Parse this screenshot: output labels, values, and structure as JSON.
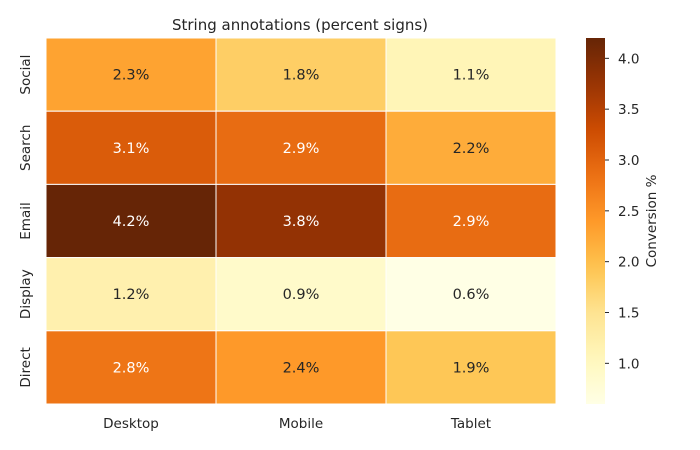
{
  "chart_data": {
    "type": "heatmap",
    "title": "String annotations (percent signs)",
    "columns": [
      "Desktop",
      "Mobile",
      "Tablet"
    ],
    "rows": [
      "Social",
      "Search",
      "Email",
      "Display",
      "Direct"
    ],
    "values": [
      [
        2.3,
        1.8,
        1.1
      ],
      [
        3.1,
        2.9,
        2.2
      ],
      [
        4.2,
        3.8,
        2.9
      ],
      [
        1.2,
        0.9,
        0.6
      ],
      [
        2.8,
        2.4,
        1.9
      ]
    ],
    "annotations": [
      [
        "2.3%",
        "1.8%",
        "1.1%"
      ],
      [
        "3.1%",
        "2.9%",
        "2.2%"
      ],
      [
        "4.2%",
        "3.8%",
        "2.9%"
      ],
      [
        "1.2%",
        "0.9%",
        "0.6%"
      ],
      [
        "2.8%",
        "2.4%",
        "1.9%"
      ]
    ],
    "colorbar": {
      "label": "Conversion %",
      "vmin": 0.6,
      "vmax": 4.2,
      "ticks": [
        "1.0",
        "1.5",
        "2.0",
        "2.5",
        "3.0",
        "3.5",
        "4.0"
      ],
      "colormap": "YlOrBr"
    },
    "grid": false
  }
}
